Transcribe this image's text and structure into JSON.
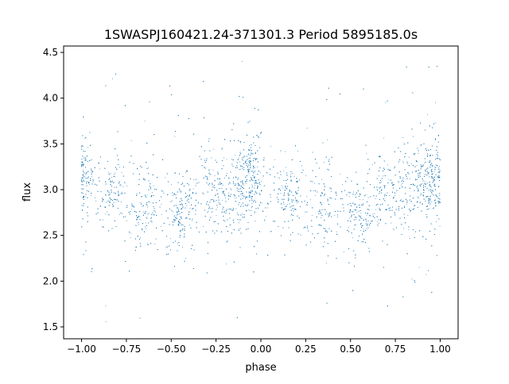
{
  "chart_data": {
    "type": "scatter",
    "title": "1SWASPJ160421.24-371301.3 Period 5895185.0s",
    "xlabel": "phase",
    "ylabel": "flux",
    "xlim": [
      -1.1,
      1.1
    ],
    "ylim": [
      1.37,
      4.57
    ],
    "xticks": [
      -1.0,
      -0.75,
      -0.5,
      -0.25,
      0.0,
      0.25,
      0.5,
      0.75,
      1.0
    ],
    "xtick_labels": [
      "−1.00",
      "−0.75",
      "−0.50",
      "−0.25",
      "0.00",
      "0.25",
      "0.50",
      "0.75",
      "1.00"
    ],
    "yticks": [
      1.5,
      2.0,
      2.5,
      3.0,
      3.5,
      4.0,
      4.5
    ],
    "ytick_labels": [
      "1.5",
      "2.0",
      "2.5",
      "3.0",
      "3.5",
      "4.0",
      "4.5"
    ],
    "grid": false,
    "marker_color": "#1f77b4",
    "point_count": 8000,
    "x_range": [
      -1.0,
      1.0
    ],
    "baseline_flux": 2.9,
    "pattern_description": "Dense clusters of points repeating with phase; higher flux clusters near phase -1.0, -0.05, 0.95; lower flux dips near -0.45 and 0.55; sparse outliers spanning 1.55 to 4.45"
  }
}
